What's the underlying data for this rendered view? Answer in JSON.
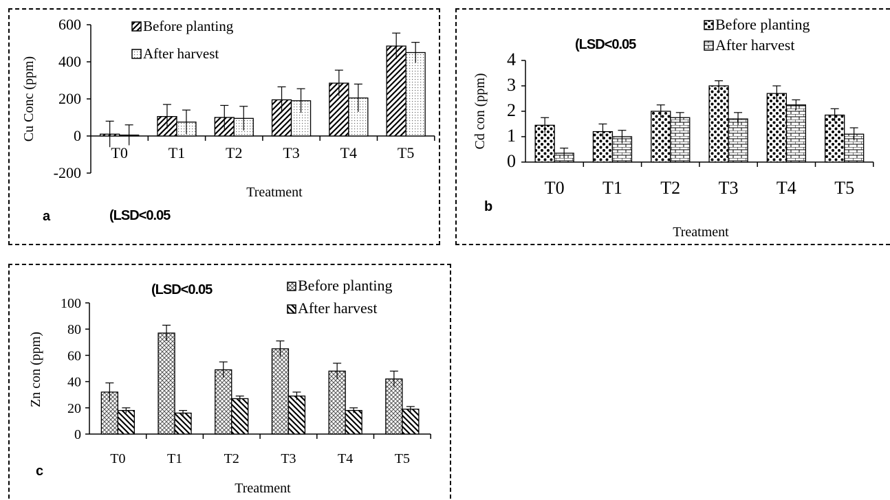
{
  "chart_data": [
    {
      "id": "a",
      "type": "bar",
      "panel_label": "a",
      "annotation": "(LSD<0.05",
      "title": "",
      "xlabel": "Treatment",
      "ylabel": "Cu Conc (ppm)",
      "ylim": [
        -200,
        600
      ],
      "yticks": [
        -200,
        0,
        200,
        400,
        600
      ],
      "categories": [
        "T0",
        "T1",
        "T2",
        "T3",
        "T4",
        "T5"
      ],
      "legend_position": "top",
      "grid": false,
      "series": [
        {
          "name": "Before planting",
          "pattern": "diag-fwd",
          "values": [
            10,
            105,
            100,
            195,
            285,
            485
          ],
          "errors": [
            70,
            65,
            65,
            70,
            70,
            70
          ]
        },
        {
          "name": "After harvest",
          "pattern": "dots",
          "values": [
            5,
            75,
            95,
            190,
            205,
            450
          ],
          "errors": [
            55,
            65,
            65,
            65,
            75,
            55
          ]
        }
      ]
    },
    {
      "id": "b",
      "type": "bar",
      "panel_label": "b",
      "annotation": "(LSD<0.05",
      "title": "",
      "xlabel": "Treatment",
      "ylabel": "Cd con (ppm)",
      "ylim": [
        0,
        4
      ],
      "yticks": [
        0,
        1,
        2,
        3,
        4
      ],
      "categories": [
        "T0",
        "T1",
        "T2",
        "T3",
        "T4",
        "T5"
      ],
      "legend_position": "top-right",
      "grid": false,
      "series": [
        {
          "name": "Before planting",
          "pattern": "polka",
          "values": [
            1.45,
            1.2,
            2.0,
            3.0,
            2.7,
            1.85
          ],
          "errors": [
            0.3,
            0.3,
            0.25,
            0.2,
            0.3,
            0.25
          ]
        },
        {
          "name": "After harvest",
          "pattern": "brick",
          "values": [
            0.35,
            1.0,
            1.75,
            1.7,
            2.25,
            1.1
          ],
          "errors": [
            0.2,
            0.25,
            0.2,
            0.25,
            0.2,
            0.25
          ]
        }
      ]
    },
    {
      "id": "c",
      "type": "bar",
      "panel_label": "c",
      "annotation": "(LSD<0.05",
      "title": "",
      "xlabel": "Treatment",
      "ylabel": "Zn con (ppm)",
      "ylim": [
        0,
        100
      ],
      "yticks": [
        0,
        20,
        40,
        60,
        80,
        100
      ],
      "categories": [
        "T0",
        "T1",
        "T2",
        "T3",
        "T4",
        "T5"
      ],
      "legend_position": "top-right",
      "grid": false,
      "series": [
        {
          "name": "Before planting",
          "pattern": "crosshatch",
          "values": [
            32,
            77,
            49,
            65,
            48,
            42
          ],
          "errors": [
            7,
            6,
            6,
            6,
            6,
            6
          ]
        },
        {
          "name": "After harvest",
          "pattern": "diag-back",
          "values": [
            18,
            16,
            27,
            29,
            18,
            19
          ],
          "errors": [
            2,
            2,
            2,
            3,
            2,
            2
          ]
        }
      ]
    }
  ]
}
